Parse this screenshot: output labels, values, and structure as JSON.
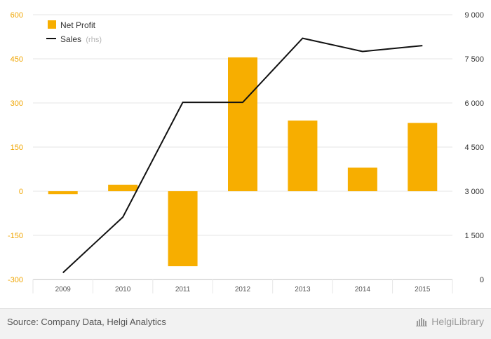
{
  "chart_data": {
    "type": "bar",
    "categories": [
      "2009",
      "2010",
      "2011",
      "2012",
      "2013",
      "2014",
      "2015"
    ],
    "series": [
      {
        "name": "Net Profit",
        "type": "bar",
        "axis": "left",
        "color": "#f7ae00",
        "values": [
          -10,
          22,
          -255,
          455,
          240,
          80,
          232
        ]
      },
      {
        "name": "Sales",
        "name_suffix": "(rhs)",
        "type": "line",
        "axis": "right",
        "color": "#111111",
        "values": [
          230,
          2120,
          6020,
          6020,
          8200,
          7750,
          7950
        ]
      }
    ],
    "yleft": {
      "lim": [
        -300,
        600
      ],
      "ticks": [
        600,
        450,
        300,
        150,
        0,
        -150,
        -300
      ],
      "tick_labels": [
        "600",
        "450",
        "300",
        "150",
        "0",
        "-150",
        "-300"
      ]
    },
    "yright": {
      "lim": [
        0,
        9000
      ],
      "ticks": [
        9000,
        7500,
        6000,
        4500,
        3000,
        1500,
        0
      ],
      "tick_labels": [
        "9 000",
        "7 500",
        "6 000",
        "4 500",
        "3 000",
        "1 500",
        "0"
      ]
    },
    "grid": true,
    "legend_position": "top-left"
  },
  "footer": {
    "source": "Source: Company Data, Helgi Analytics",
    "brand": "HelgiLibrary"
  }
}
